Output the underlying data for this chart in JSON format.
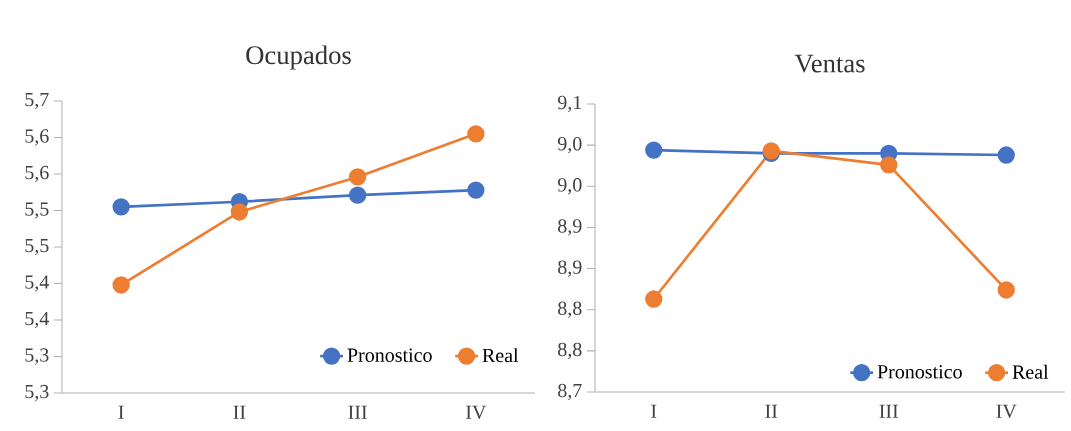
{
  "chart_data": [
    {
      "type": "line",
      "title": "Ocupados",
      "categories": [
        "I",
        "II",
        "III",
        "IV"
      ],
      "series": [
        {
          "name": "Pronostico",
          "color": "#4472c4",
          "values": [
            5.505,
            5.512,
            5.521,
            5.528
          ]
        },
        {
          "name": "Real",
          "color": "#ed7d31",
          "values": [
            5.398,
            5.498,
            5.546,
            5.605
          ]
        }
      ],
      "ylim": [
        5.25,
        5.65
      ],
      "yticks": [
        {
          "value": 5.25,
          "label": "5,3"
        },
        {
          "value": 5.3,
          "label": "5,3"
        },
        {
          "value": 5.35,
          "label": "5,4"
        },
        {
          "value": 5.4,
          "label": "5,4"
        },
        {
          "value": 5.45,
          "label": "5,5"
        },
        {
          "value": 5.5,
          "label": "5,5"
        },
        {
          "value": 5.55,
          "label": "5,6"
        },
        {
          "value": 5.6,
          "label": "5,6"
        },
        {
          "value": 5.65,
          "label": "5,7"
        }
      ],
      "grid": false,
      "legend": "bottom right",
      "marker": "circle",
      "line_style": "solid"
    },
    {
      "type": "line",
      "title": "Ventas",
      "categories": [
        "I",
        "II",
        "III",
        "IV"
      ],
      "series": [
        {
          "name": "Pronostico",
          "color": "#4472c4",
          "values": [
            8.994,
            8.99,
            8.99,
            8.988
          ]
        },
        {
          "name": "Real",
          "color": "#ed7d31",
          "values": [
            8.813,
            8.993,
            8.976,
            8.824
          ]
        }
      ],
      "ylim": [
        8.7,
        9.05
      ],
      "yticks": [
        {
          "value": 8.7,
          "label": "8,7"
        },
        {
          "value": 8.75,
          "label": "8,8"
        },
        {
          "value": 8.8,
          "label": "8,8"
        },
        {
          "value": 8.85,
          "label": "8,9"
        },
        {
          "value": 8.9,
          "label": "8,9"
        },
        {
          "value": 8.95,
          "label": "9,0"
        },
        {
          "value": 9.0,
          "label": "9,0"
        },
        {
          "value": 9.05,
          "label": "9,1"
        }
      ],
      "grid": false,
      "legend": "bottom",
      "marker": "circle",
      "line_style": "solid"
    }
  ]
}
